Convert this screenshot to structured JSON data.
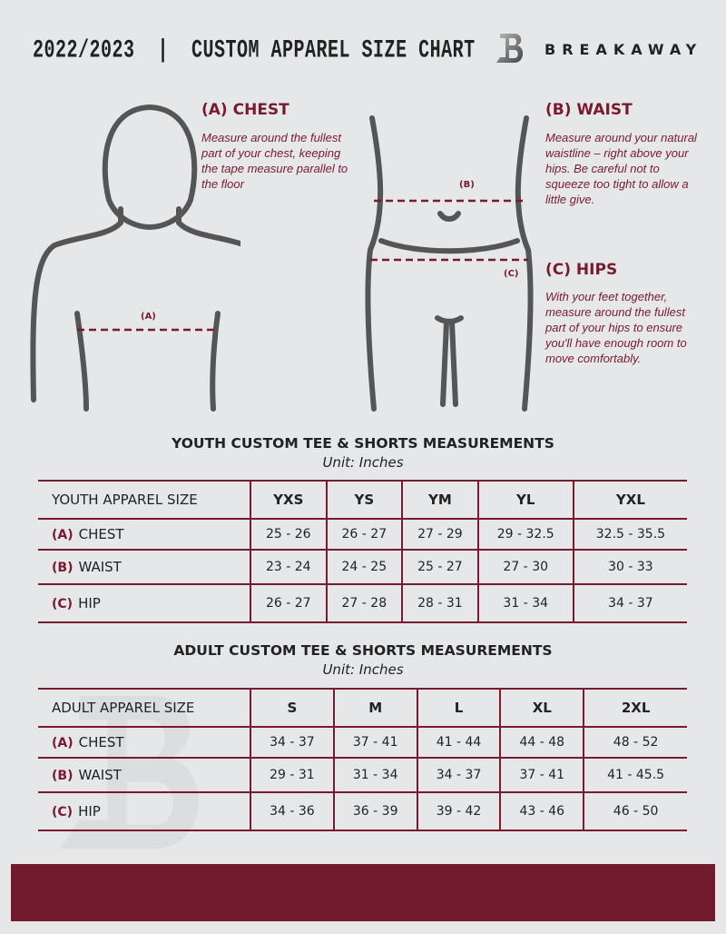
{
  "header": {
    "title": "2022/2023  |  CUSTOM APPAREL SIZE CHART",
    "brand": "BREAKAWAY",
    "logo_letter": "B"
  },
  "chest": {
    "heading": "(A) CHEST",
    "text": "Measure around the fullest part of your chest, keeping the tape measure parallel to the floor",
    "marker": "(A)"
  },
  "waist": {
    "heading": "(B) WAIST",
    "text": "Measure around your natural waistline – right above your hips. Be careful not to squeeze too tight to allow a little give.",
    "marker": "(B)"
  },
  "hips": {
    "heading": "(C) HIPS",
    "text": "With your feet together, measure around the fullest part of your hips to ensure you'll have enough room to move comfortably.",
    "marker": "(C)"
  },
  "youth": {
    "title": "YOUTH CUSTOM TEE & SHORTS MEASUREMENTS",
    "unit": "Unit: Inches",
    "header": "YOUTH APPAREL SIZE",
    "sizes": [
      "YXS",
      "YS",
      "YM",
      "YL",
      "YXL"
    ],
    "rows": [
      {
        "letter": "(A)",
        "label": "CHEST",
        "values": [
          "25 - 26",
          "26 - 27",
          "27 - 29",
          "29 - 32.5",
          "32.5 - 35.5"
        ]
      },
      {
        "letter": "(B)",
        "label": "WAIST",
        "values": [
          "23 - 24",
          "24 - 25",
          "25 - 27",
          "27 - 30",
          "30 - 33"
        ]
      },
      {
        "letter": "(C)",
        "label": "HIP",
        "values": [
          "26 - 27",
          "27 - 28",
          "28 - 31",
          "31 - 34",
          "34 - 37"
        ]
      }
    ]
  },
  "adult": {
    "title": "ADULT CUSTOM TEE & SHORTS MEASUREMENTS",
    "unit": "Unit: Inches",
    "header": "ADULT APPAREL SIZE",
    "sizes": [
      "S",
      "M",
      "L",
      "XL",
      "2XL"
    ],
    "rows": [
      {
        "letter": "(A)",
        "label": "CHEST",
        "values": [
          "34 - 37",
          "37 - 41",
          "41 - 44",
          "44 - 48",
          "48 - 52"
        ]
      },
      {
        "letter": "(B)",
        "label": "WAIST",
        "values": [
          "29 - 31",
          "31 - 34",
          "34 - 37",
          "37 - 41",
          "41 - 45.5"
        ]
      },
      {
        "letter": "(C)",
        "label": "HIP",
        "values": [
          "34 - 36",
          "36 - 39",
          "39 - 42",
          "43 - 46",
          "46 - 50"
        ]
      }
    ]
  },
  "colors": {
    "accent": "#7a1a2e",
    "background": "#e6e7e9",
    "footer": "#721a2e"
  }
}
